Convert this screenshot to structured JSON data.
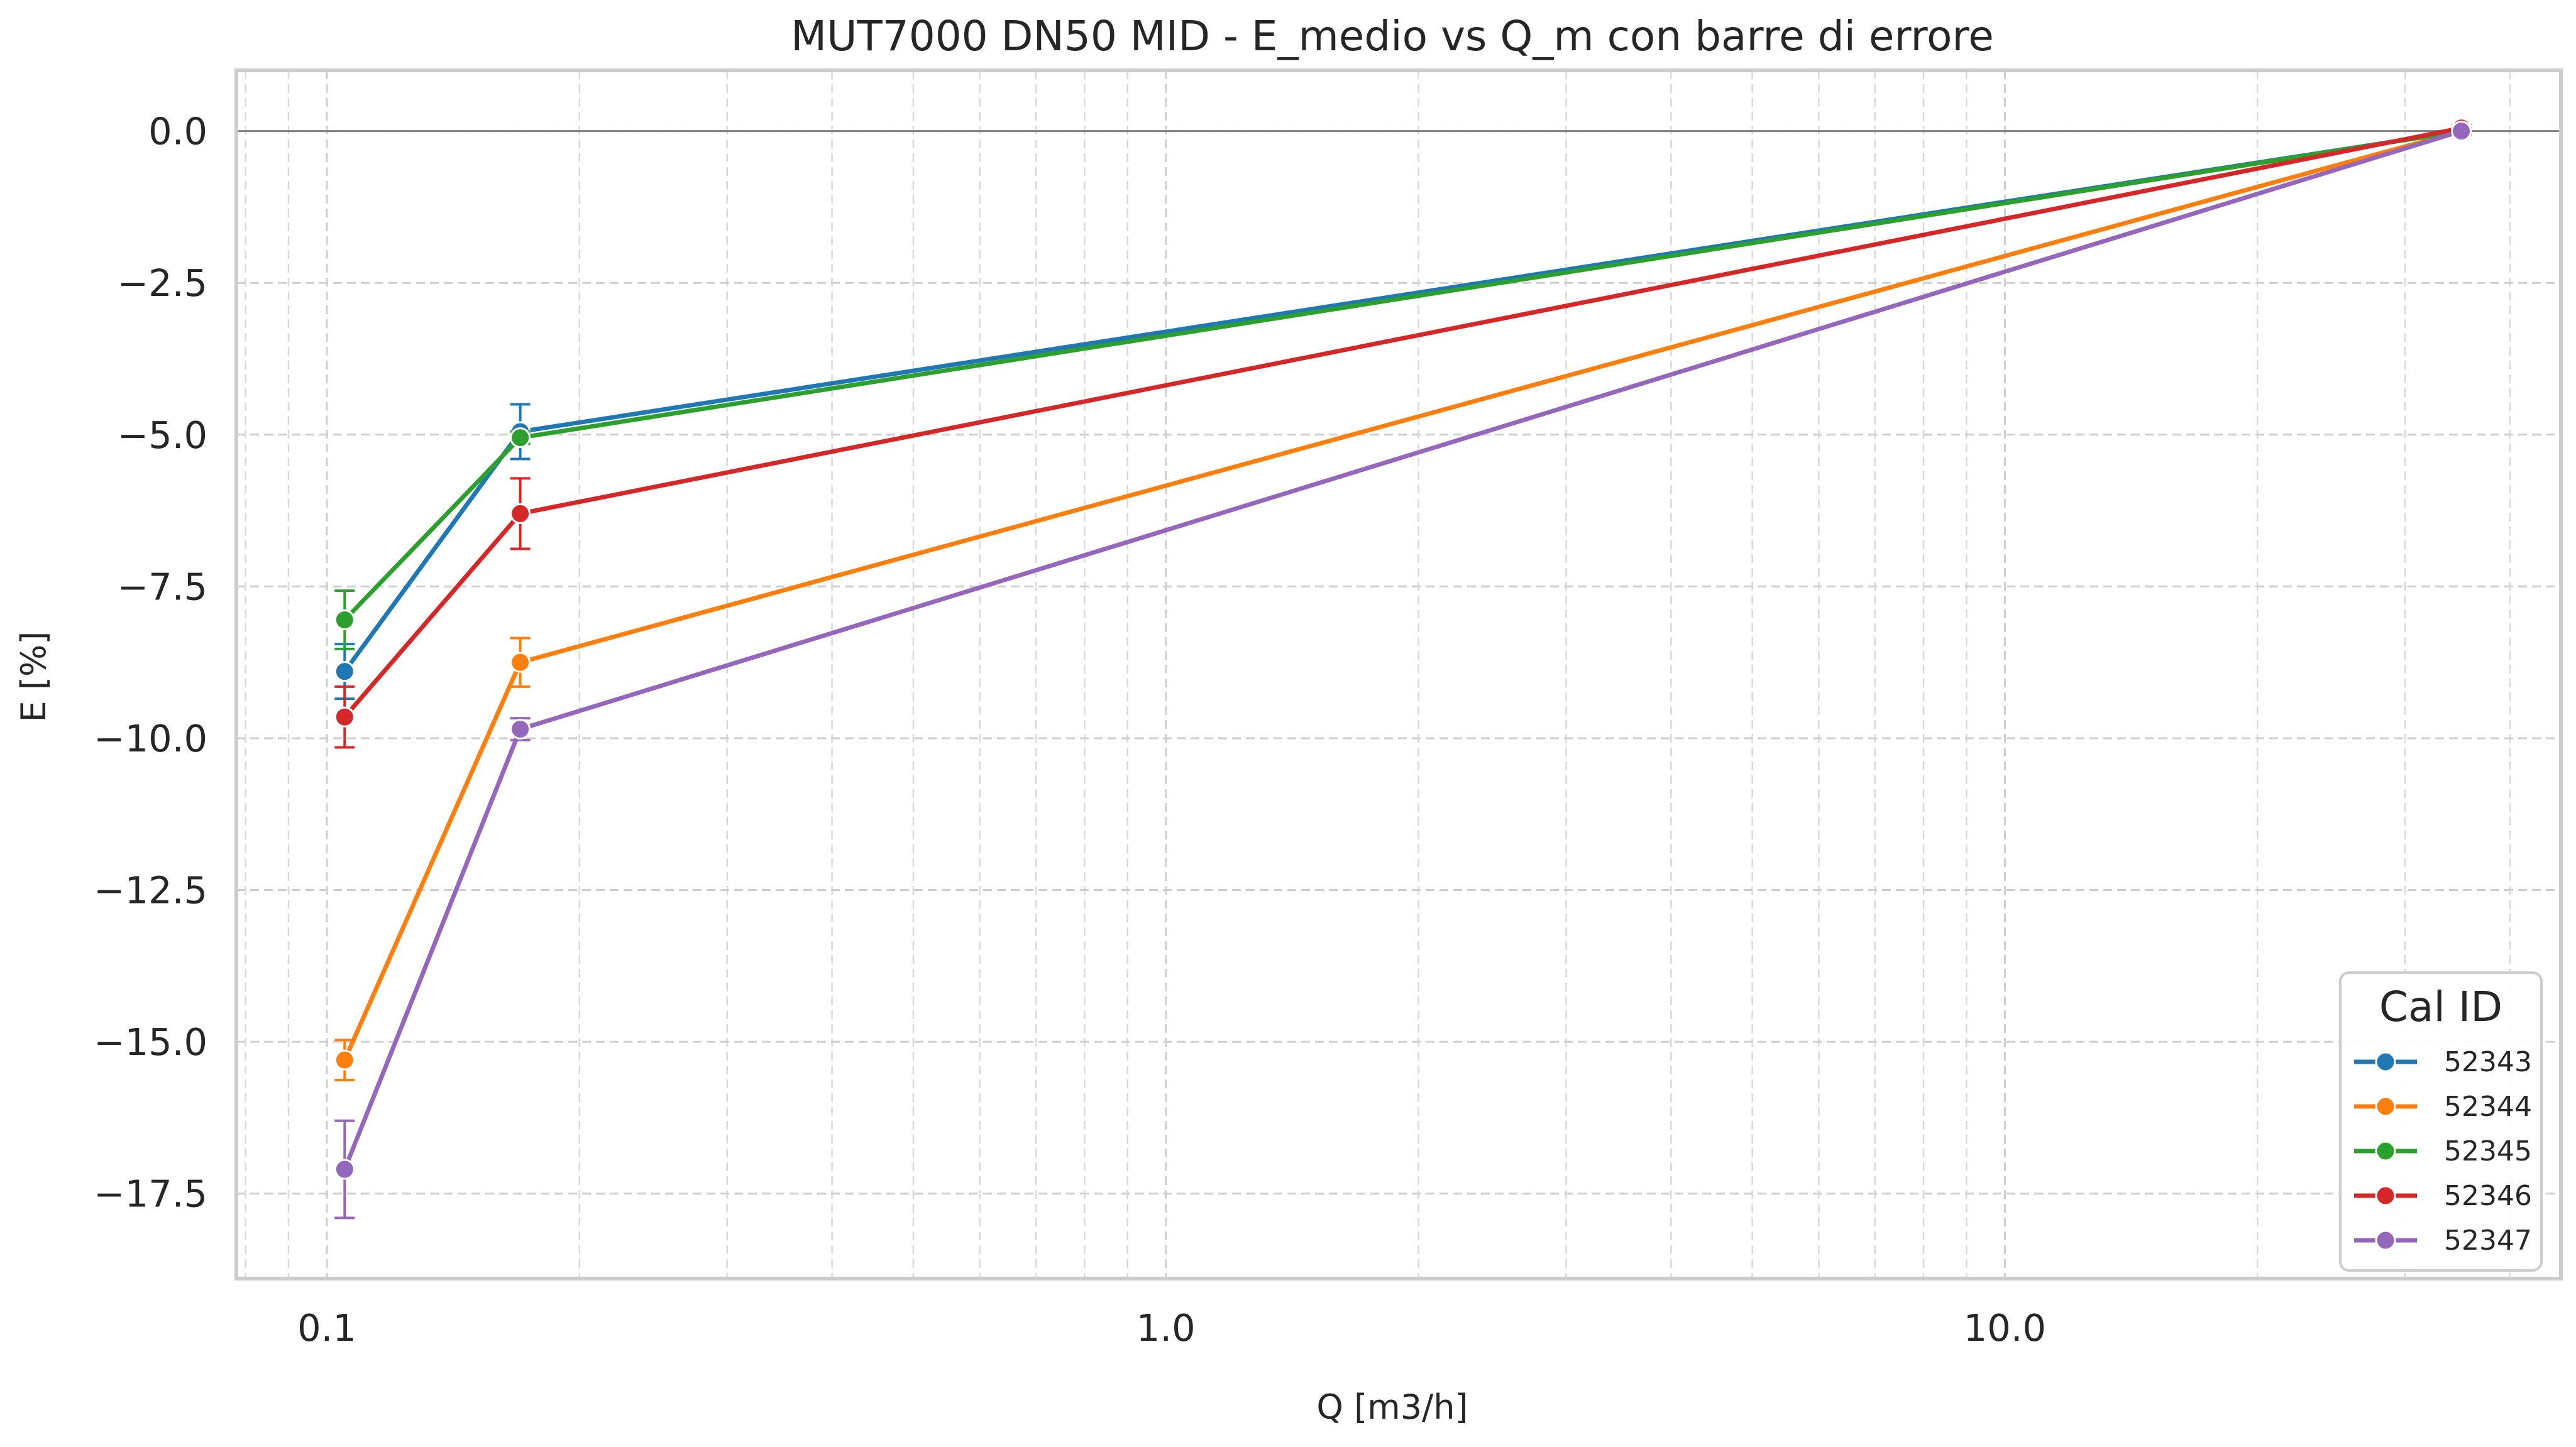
{
  "chart_data": {
    "type": "line",
    "title": "MUT7000 DN50 MID - E_medio vs Q_m con barre di errore",
    "xlabel": "Q [m3/h]",
    "ylabel": "E [%]",
    "xscale": "log",
    "xlim": [
      0.078,
      46
    ],
    "ylim": [
      -18.9,
      1.0
    ],
    "x_ticks": [
      0.1,
      1.0,
      10.0
    ],
    "x_tick_labels": [
      "0.1",
      "1.0",
      "10.0"
    ],
    "y_ticks": [
      0.0,
      -2.5,
      -5.0,
      -7.5,
      -10.0,
      -12.5,
      -15.0,
      -17.5
    ],
    "y_tick_labels": [
      "0.0",
      "−2.5",
      "−5.0",
      "−7.5",
      "−10.0",
      "−12.5",
      "−15.0",
      "−17.5"
    ],
    "grid": true,
    "reference_line_y": 0,
    "legend": {
      "title": "Cal ID",
      "placement": "lower-right"
    },
    "x": [
      0.105,
      0.17,
      35.0
    ],
    "series": [
      {
        "name": "52343",
        "color": "#1f77b4",
        "values": [
          -8.9,
          -4.95,
          0.0
        ],
        "errors": [
          0.45,
          0.45,
          0.05
        ]
      },
      {
        "name": "52344",
        "color": "#ff7f0e",
        "values": [
          -15.3,
          -8.75,
          0.0
        ],
        "errors": [
          0.33,
          0.4,
          0.05
        ]
      },
      {
        "name": "52345",
        "color": "#2ca02c",
        "values": [
          -8.05,
          -5.05,
          0.0
        ],
        "errors": [
          0.48,
          0.1,
          0.05
        ]
      },
      {
        "name": "52346",
        "color": "#d62728",
        "values": [
          -9.65,
          -6.3,
          0.05
        ],
        "errors": [
          0.5,
          0.58,
          0.05
        ]
      },
      {
        "name": "52347",
        "color": "#9467bd",
        "values": [
          -17.1,
          -9.85,
          0.0
        ],
        "errors": [
          0.8,
          0.18,
          0.05
        ]
      }
    ]
  }
}
